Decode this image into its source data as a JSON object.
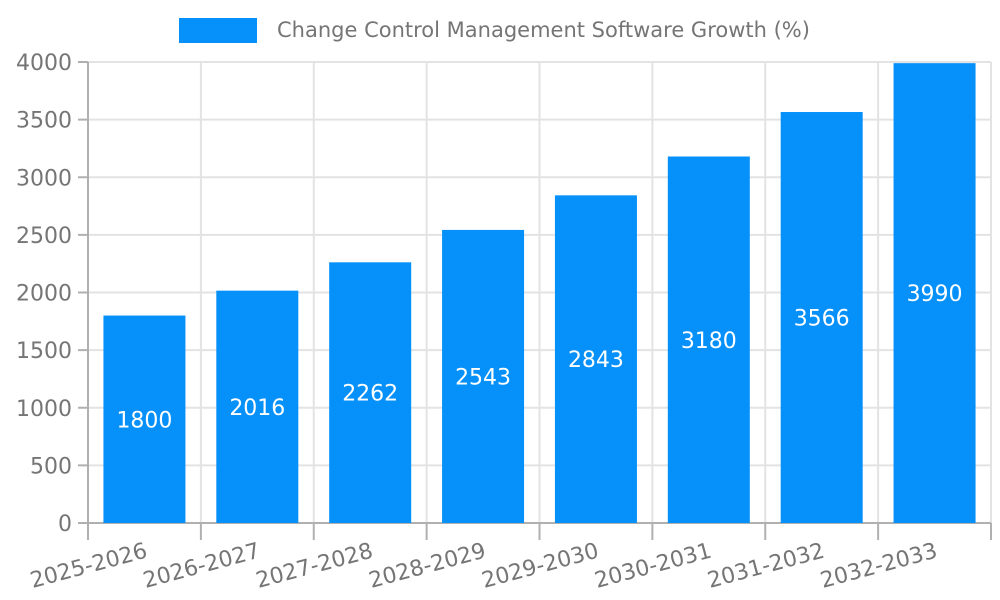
{
  "legend": {
    "label": "Change Control Management Software Growth (%)"
  },
  "colors": {
    "bar": "#0690fa",
    "grid": "#e3e3e3",
    "axis": "#b0b0b0",
    "tick": "#b0b0b0",
    "axis_text": "#757575",
    "value_label_text": "#ffffff",
    "background": "#ffffff"
  },
  "chart_data": {
    "type": "bar",
    "title": "Change Control Management Software Growth (%)",
    "series_name": "Change Control Management Software Growth (%)",
    "categories": [
      "2025-2026",
      "2026-2027",
      "2027-2028",
      "2028-2029",
      "2029-2030",
      "2030-2031",
      "2031-2032",
      "2032-2033"
    ],
    "values": [
      1800,
      2016,
      2262,
      2543,
      2843,
      3180,
      3566,
      3990
    ],
    "value_labels_shown": [
      "1800",
      "2016",
      "2262",
      "2543",
      "2843",
      "3180",
      "3566",
      "3990"
    ],
    "xlabel": "",
    "ylabel": "",
    "ylim": [
      0,
      4000
    ],
    "yticks": [
      0,
      500,
      1000,
      1500,
      2000,
      2500,
      3000,
      3500,
      4000
    ],
    "ytick_labels": [
      "0",
      "500",
      "1000",
      "1500",
      "2000",
      "2500",
      "3000",
      "3500",
      "4000"
    ],
    "grid": true,
    "legend_position": "top",
    "value_label_position": "inside-center",
    "xtick_rotation_deg": -15
  }
}
